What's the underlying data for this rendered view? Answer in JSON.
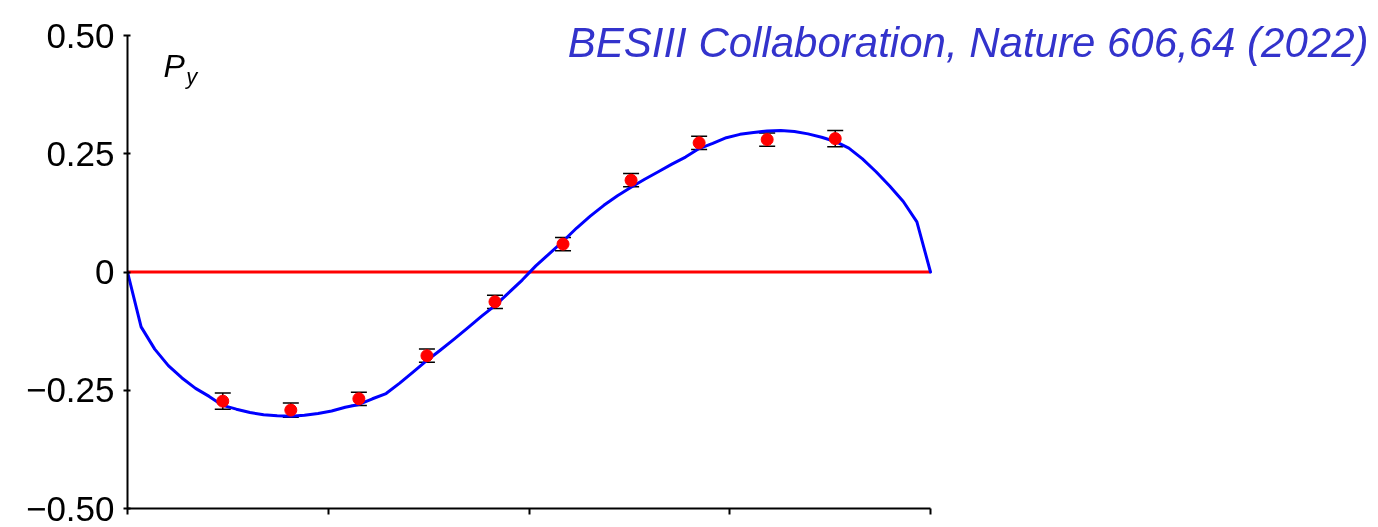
{
  "chart_data": {
    "type": "scatter",
    "ylabel": "P$_{y}$",
    "annotations": [
      "BESIII Collaboration, Nature 606,64 (2022)"
    ],
    "categories": [
      null,
      null,
      null,
      null,
      null,
      null,
      null,
      null,
      null,
      null,
      null,
      null,
      null,
      null,
      null,
      null,
      null,
      null,
      null,
      null,
      null,
      null,
      null,
      null,
      null,
      null,
      null,
      null,
      null,
      null,
      null,
      null,
      null,
      null,
      null,
      null,
      null,
      null,
      null,
      null,
      null,
      null,
      null,
      null,
      null,
      null,
      null,
      null,
      null,
      null,
      null,
      null,
      null,
      null,
      null,
      null,
      null,
      null,
      null,
      null
    ],
    "tick_labels": "y",
    "ylim": [
      -0.5,
      0.5
    ],
    "yticks": [
      {
        "value": -0.5,
        "label": "−0.50"
      },
      {
        "value": -0.25,
        "label": "−0.25"
      },
      0,
      {
        "value": 0.25,
        "label": "0.25"
      },
      {
        "value": 0.5,
        "label": "0.50"
      }
    ],
    "ref_lines": [
      {
        "axis": "y",
        "value": 0,
        "color": "#ff0000"
      }
    ],
    "series": [
      {
        "type": "line",
        "color": "#0000ff",
        "values": [
          0,
          -0.116,
          -0.163,
          -0.198,
          -0.224,
          -0.246,
          -0.263,
          -0.282,
          -0.29,
          -0.297,
          -0.302,
          -0.304,
          -0.305,
          -0.303,
          -0.299,
          -0.294,
          -0.286,
          -0.28,
          -0.268,
          -0.257,
          -0.235,
          -0.211,
          -0.187,
          -0.165,
          -0.142,
          -0.118,
          -0.094,
          -0.071,
          -0.044,
          -0.017,
          0.013,
          0.039,
          0.065,
          0.093,
          0.118,
          0.141,
          0.161,
          0.179,
          0.196,
          0.212,
          0.228,
          0.243,
          0.261,
          0.272,
          0.284,
          0.291,
          0.295,
          0.298,
          0.299,
          0.297,
          0.292,
          0.285,
          0.276,
          0.262,
          0.239,
          0.212,
          0.182,
          0.149,
          0.106,
          0
        ]
      },
      {
        "color": "#ff0000",
        "marker": "circle",
        "values": [
          null,
          null,
          null,
          null,
          null,
          null,
          null,
          -0.273,
          null,
          null,
          null,
          null,
          -0.292,
          null,
          null,
          null,
          null,
          -0.268,
          null,
          null,
          null,
          null,
          -0.177,
          null,
          null,
          null,
          null,
          -0.063,
          null,
          null,
          null,
          null,
          0.059,
          null,
          null,
          null,
          null,
          0.194,
          null,
          null,
          null,
          null,
          0.273,
          null,
          null,
          null,
          null,
          0.28,
          null,
          null,
          null,
          null,
          0.282,
          null,
          null,
          null,
          null,
          null,
          null,
          null
        ],
        "errors": [
          null,
          null,
          null,
          null,
          null,
          null,
          null,
          0.017,
          null,
          null,
          null,
          null,
          0.015,
          null,
          null,
          null,
          null,
          0.014,
          null,
          null,
          null,
          null,
          0.014,
          null,
          null,
          null,
          null,
          0.014,
          null,
          null,
          null,
          null,
          0.014,
          null,
          null,
          null,
          null,
          0.014,
          null,
          null,
          null,
          null,
          0.014,
          null,
          null,
          null,
          null,
          0.014,
          null,
          null,
          null,
          null,
          0.017,
          null,
          null,
          null,
          null,
          null,
          null,
          null
        ]
      }
    ]
  }
}
